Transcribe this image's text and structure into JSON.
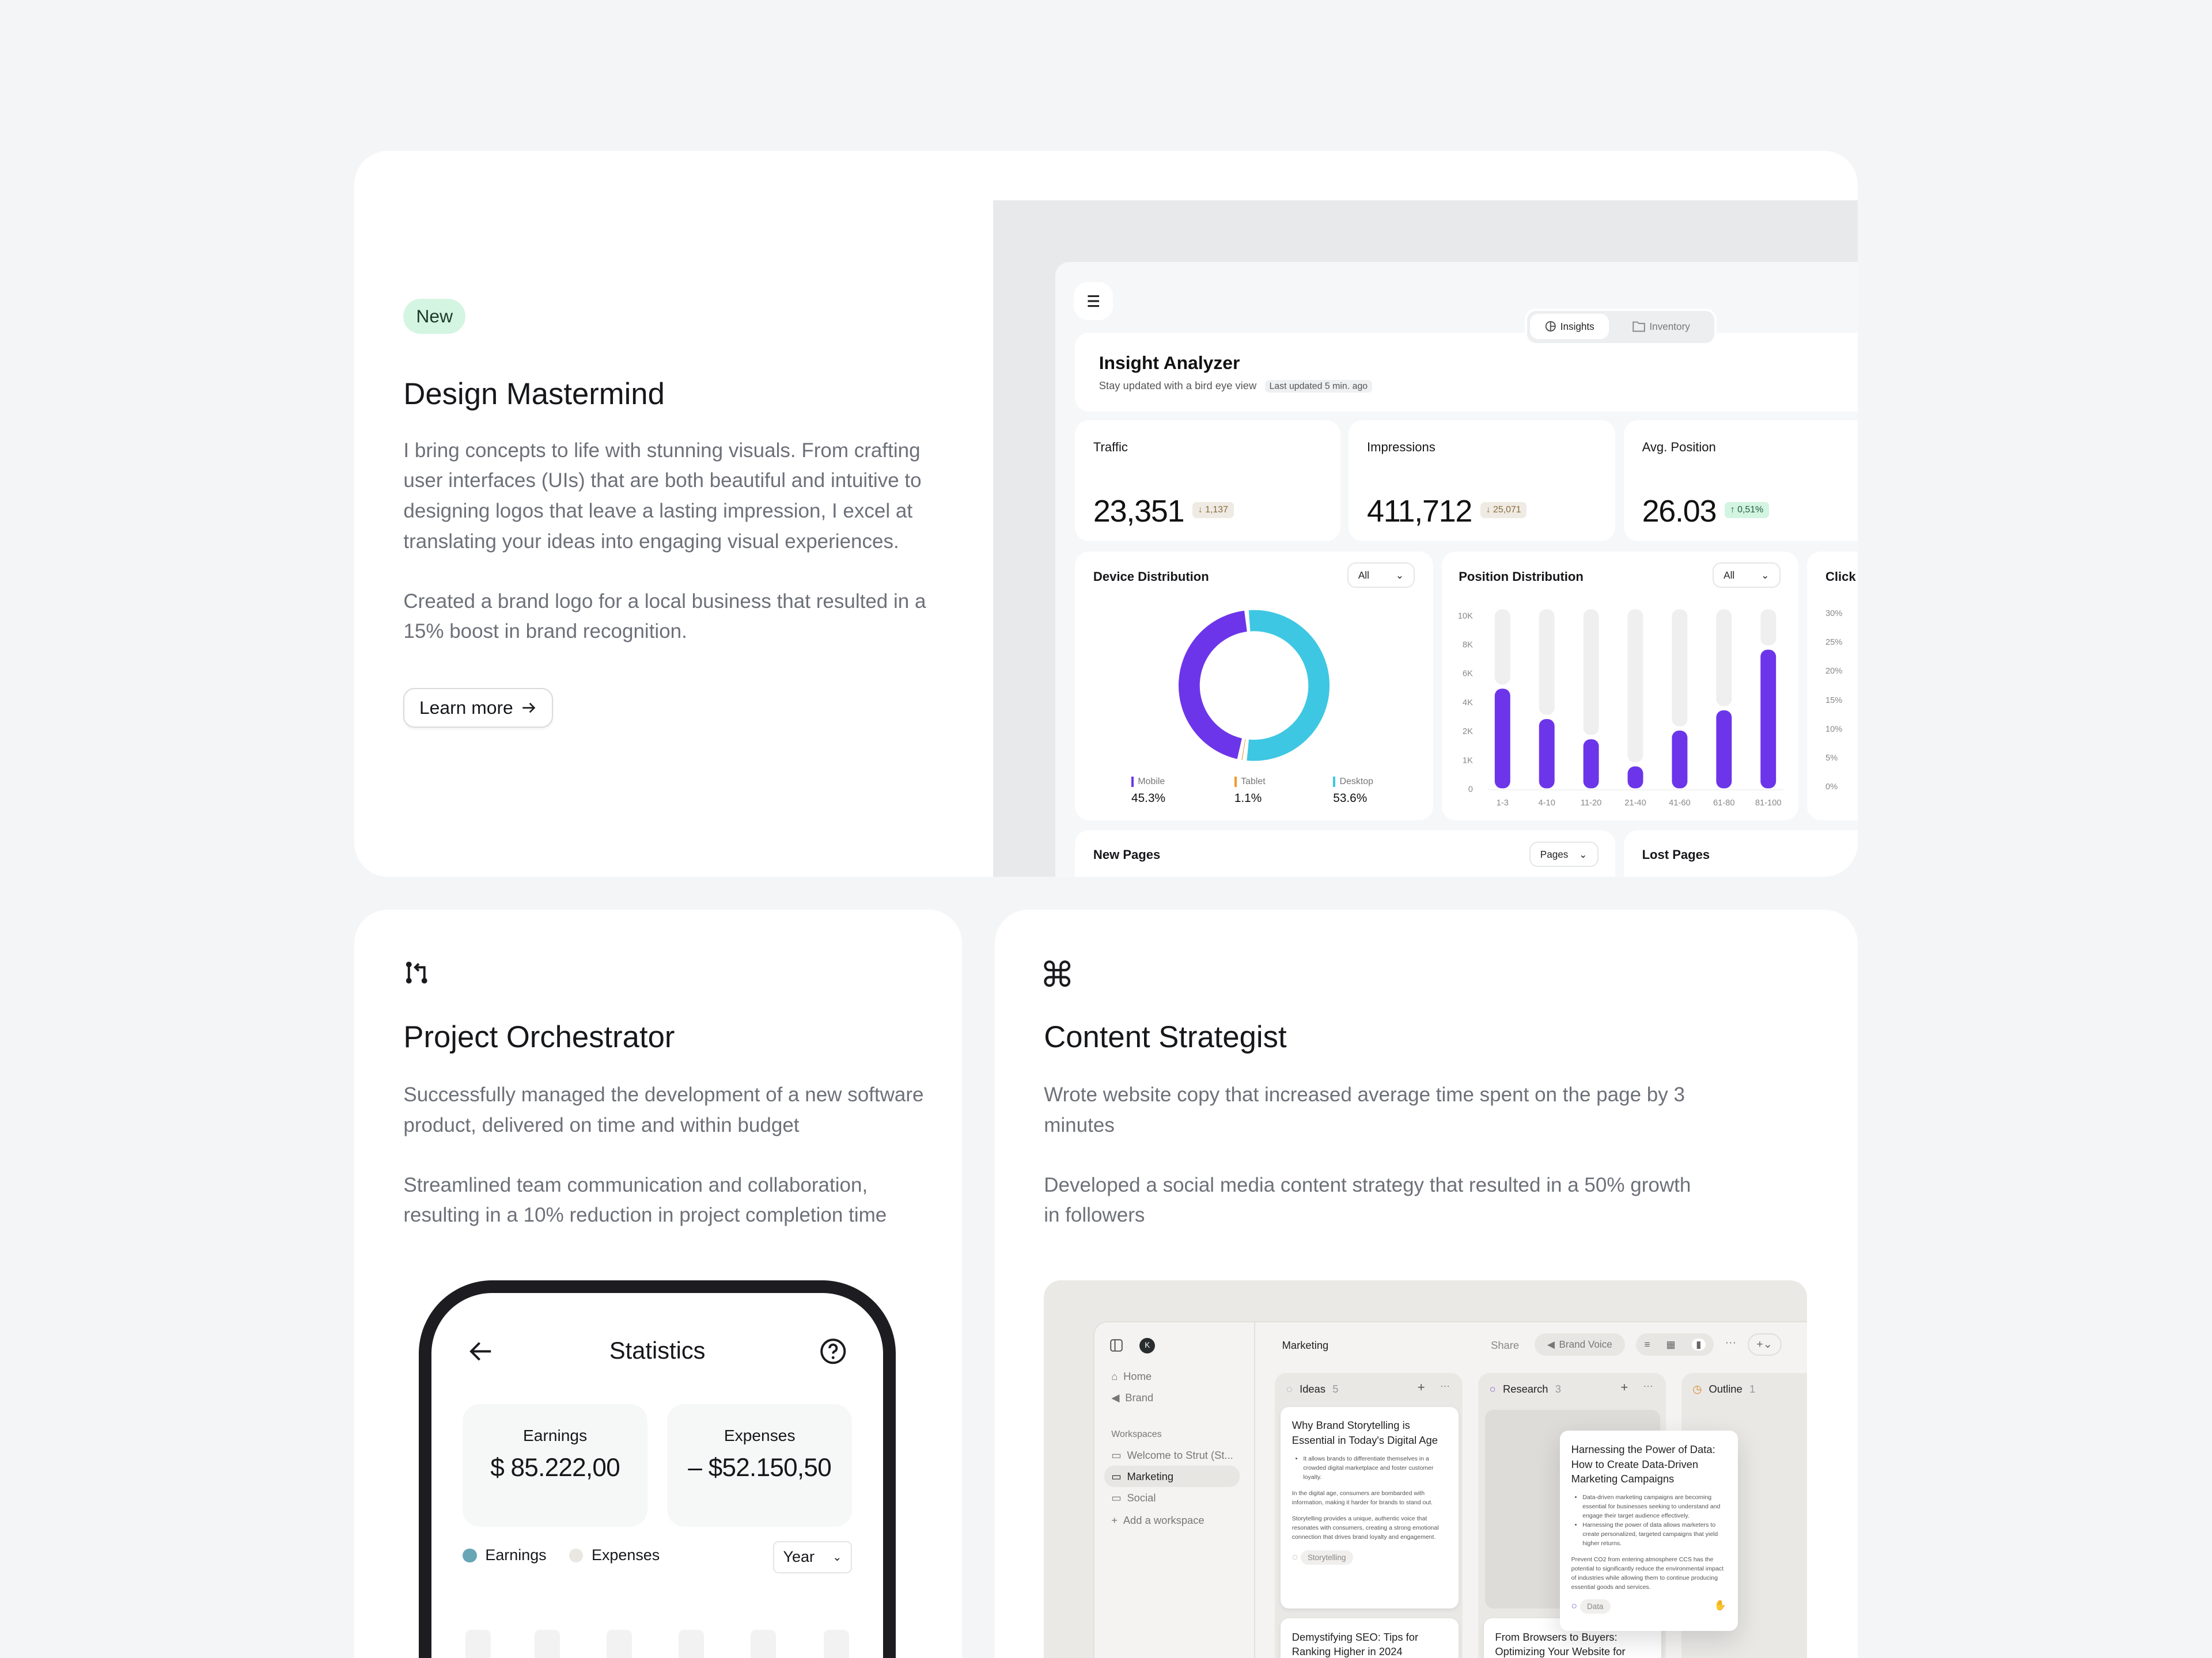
{
  "design_card": {
    "badge": "New",
    "title": "Design Mastermind",
    "paragraph1": "I bring concepts to life with stunning visuals. From crafting user interfaces (UIs) that are both beautiful and intuitive to designing logos that leave a lasting impression, I excel at translating your ideas into engaging visual experiences.",
    "paragraph2": "Created a brand logo for a local business that resulted in a 15% boost in brand recognition.",
    "button": "Learn more",
    "dashboard": {
      "tabs": [
        {
          "label": "Insights",
          "icon": "pie-chart-icon",
          "active": true
        },
        {
          "label": "Inventory",
          "icon": "folder-icon",
          "active": false
        }
      ],
      "title": "Insight Analyzer",
      "subtitle": "Stay updated with a bird eye view",
      "updated": "Last updated 5 min. ago",
      "kpis": [
        {
          "label": "Traffic",
          "value": "23,351",
          "delta": "1,137",
          "direction": "down"
        },
        {
          "label": "Impressions",
          "value": "411,712",
          "delta": "25,071",
          "direction": "down"
        },
        {
          "label": "Avg. Position",
          "value": "26.03",
          "delta": "0,51%",
          "direction": "up"
        }
      ],
      "device": {
        "title": "Device Distribution",
        "filter": "All"
      },
      "position": {
        "title": "Position Distribution",
        "filter": "All"
      },
      "clicks": {
        "title": "Click",
        "ticks": [
          "30%",
          "25%",
          "20%",
          "15%",
          "10%",
          "5%",
          "0%"
        ]
      },
      "new_pages": {
        "title": "New Pages",
        "filter": "Pages"
      },
      "lost_pages": {
        "title": "Lost Pages"
      }
    }
  },
  "chart_data": [
    {
      "type": "pie",
      "categories": [
        "Mobile",
        "Tablet",
        "Desktop"
      ],
      "values": [
        45.3,
        1.1,
        53.6
      ],
      "labels": [
        "45.3%",
        "1.1%",
        "53.6%"
      ],
      "colors": [
        "#6c35ea",
        "#ee9b2f",
        "#3ec7e2"
      ]
    },
    {
      "type": "bar",
      "categories": [
        "1-3",
        "4-10",
        "11-20",
        "21-40",
        "41-60",
        "61-80",
        "81-100"
      ],
      "values": [
        4900,
        2800,
        1700,
        760,
        2000,
        3400,
        7600
      ],
      "yticks": [
        0,
        1000,
        2000,
        4000,
        6000,
        8000,
        10000
      ],
      "ytick_labels": [
        "0",
        "1K",
        "2K",
        "4K",
        "6K",
        "8K",
        "10K"
      ],
      "ylim": [
        0,
        10000
      ],
      "color": "#6c35ea"
    }
  ],
  "project_card": {
    "icon": "git-pull-request-icon",
    "title": "Project Orchestrator",
    "paragraph1": "Successfully managed the development of a new software product, delivered on time and within budget",
    "paragraph2": "Streamlined team communication and collaboration, resulting in a 10% reduction in project completion time",
    "phone": {
      "title": "Statistics",
      "earnings_label": "Earnings",
      "earnings_value": "$ 85.222,00",
      "expenses_label": "Expenses",
      "expenses_value": "– $52.150,50",
      "legend": [
        {
          "label": "Earnings",
          "color": "#67a6b5"
        },
        {
          "label": "Expenses",
          "color": "#e9e7e1"
        }
      ],
      "period": "Year"
    }
  },
  "content_card": {
    "icon": "command-icon",
    "title": "Content Strategist",
    "paragraph1": "Wrote website copy that increased average time spent on the page by 3 minutes",
    "paragraph2": "Developed a social media content strategy that resulted in a 50% growth in followers",
    "app": {
      "avatar": "K",
      "nav": [
        "Home",
        "Brand"
      ],
      "workspaces_label": "Workspaces",
      "workspaces": [
        "Welcome to Strut (St...",
        "Marketing",
        "Social"
      ],
      "add_workspace": "Add a workspace",
      "page_title": "Marketing",
      "share": "Share",
      "brand_voice": "Brand Voice",
      "columns": [
        {
          "name": "Ideas",
          "count": "5"
        },
        {
          "name": "Research",
          "count": "3"
        },
        {
          "name": "Outline",
          "count": "1"
        }
      ],
      "card1": {
        "title": "Why Brand Storytelling is Essential in Today's Digital Age",
        "bullet": "It allows brands to differentiate themselves in a crowded digital marketplace and foster customer loyalty.",
        "p1": "In the digital age, consumers are bombarded with information, making it harder for brands to stand out.",
        "p2": "Storytelling provides a unique, authentic voice that resonates with consumers, creating a strong emotional connection that drives brand loyalty and engagement.",
        "tag": "Storytelling"
      },
      "card2": {
        "title": "Harnessing the Power of Data: How to Create Data-Driven Marketing Campaigns",
        "bullet1": "Data-driven marketing campaigns are becoming essential for businesses seeking to understand and engage their target audience effectively.",
        "bullet2": "Harnessing the power of data allows marketers to create personalized, targeted campaigns that yield higher returns.",
        "p1": "Prevent CO2 from entering atmosphere CCS has the potential to significantly reduce the environmental impact of industries while allowing them to continue producing essential goods and services.",
        "tag": "Data"
      },
      "card3": {
        "title": "Demystifying SEO: Tips for Ranking Higher in 2024"
      },
      "card4": {
        "title": "From Browsers to Buyers: Optimizing Your Website for"
      }
    }
  }
}
